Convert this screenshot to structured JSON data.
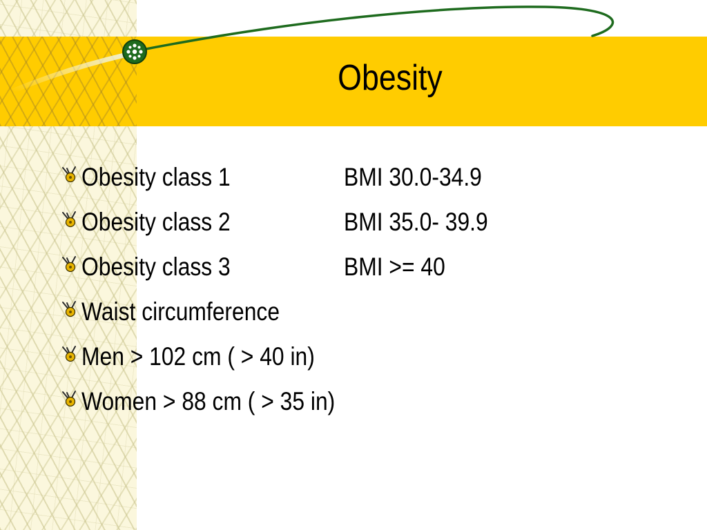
{
  "slide": {
    "title": "Obesity",
    "bullets": [
      {
        "label": "Obesity class 1",
        "value": "BMI 30.0-34.9"
      },
      {
        "label": "Obesity class 2",
        "value": "BMI 35.0- 39.9"
      },
      {
        "label": "Obesity class 3",
        "value": "BMI >= 40"
      },
      {
        "label": "Waist circumference",
        "value": ""
      },
      {
        "label": "Men > 102 cm ( > 40 in)",
        "value": ""
      },
      {
        "label": "Women > 88 cm ( > 35 in)",
        "value": ""
      }
    ],
    "bullet_icon": "flower-bullet-icon",
    "decoration": "comet-swoosh"
  },
  "colors": {
    "title_band": "#ffcc00",
    "left_strip": "#fbf7dd",
    "swoosh": "#1e6b1e",
    "text": "#000000",
    "bullet_center": "#e8b400"
  }
}
